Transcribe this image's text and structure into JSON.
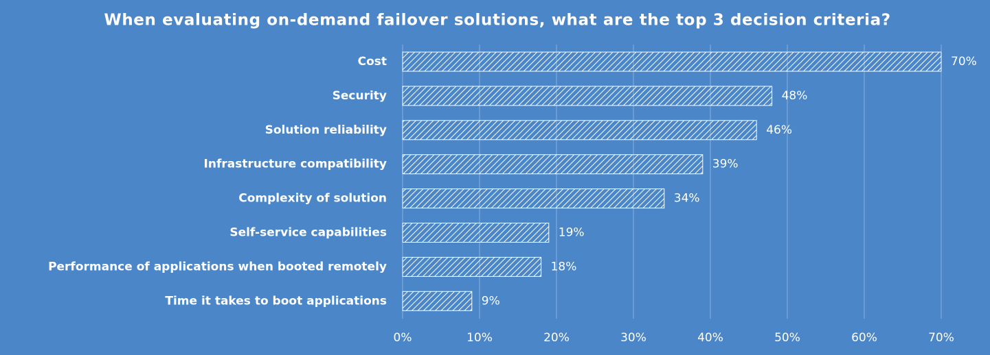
{
  "chart_data": {
    "type": "bar",
    "orientation": "horizontal",
    "title": "When evaluating on-demand failover solutions, what are the top 3 decision criteria?",
    "categories": [
      "Cost",
      "Security",
      "Solution reliability",
      "Infrastructure compatibility",
      "Complexity of solution",
      "Self-service capabilities",
      "Performance of applications when booted remotely",
      "Time it takes to boot applications"
    ],
    "values": [
      70,
      48,
      46,
      39,
      34,
      19,
      18,
      9
    ],
    "value_labels": [
      "70%",
      "48%",
      "46%",
      "39%",
      "34%",
      "19%",
      "18%",
      "9%"
    ],
    "color": "#ffffff",
    "xlim": [
      0,
      70
    ],
    "xticks": [
      {
        "value": 0,
        "label": "0%"
      },
      {
        "value": 10,
        "label": "10%"
      },
      {
        "value": 20,
        "label": "20%"
      },
      {
        "value": 30,
        "label": "30%"
      },
      {
        "value": 40,
        "label": "40%"
      },
      {
        "value": 50,
        "label": "50%"
      },
      {
        "value": 60,
        "label": "60%"
      },
      {
        "value": 70,
        "label": "70%"
      }
    ],
    "grid": true
  }
}
